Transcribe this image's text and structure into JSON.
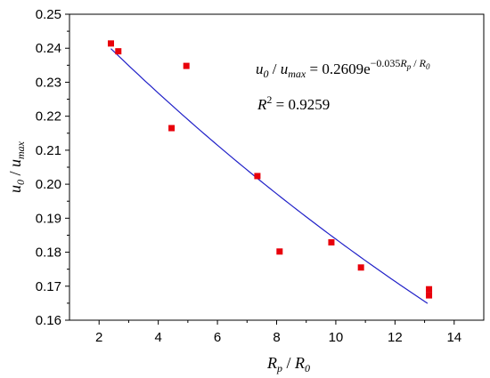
{
  "chart_data": {
    "type": "scatter",
    "xlim": [
      1,
      15
    ],
    "ylim": [
      0.16,
      0.25
    ],
    "x_ticks": [
      2,
      4,
      6,
      8,
      10,
      12,
      14
    ],
    "y_ticks": [
      0.16,
      0.17,
      0.18,
      0.19,
      0.2,
      0.21,
      0.22,
      0.23,
      0.24,
      0.25
    ],
    "x_tick_labels": [
      "2",
      "4",
      "6",
      "8",
      "10",
      "12",
      "14"
    ],
    "y_tick_labels": [
      "0.16",
      "0.17",
      "0.18",
      "0.19",
      "0.20",
      "0.21",
      "0.22",
      "0.23",
      "0.24",
      "0.25"
    ],
    "xlabel": {
      "main": "R",
      "sub_p": "p",
      "sep": " / ",
      "main2": "R",
      "sub_0": "0"
    },
    "ylabel": {
      "main": "u",
      "sub_0": "0",
      "sep": " / ",
      "main2": "u",
      "sub_max": "max"
    },
    "points": [
      {
        "x": 2.4,
        "y": 0.2414
      },
      {
        "x": 2.65,
        "y": 0.2391
      },
      {
        "x": 4.45,
        "y": 0.2165
      },
      {
        "x": 4.95,
        "y": 0.2348
      },
      {
        "x": 7.35,
        "y": 0.2024
      },
      {
        "x": 8.1,
        "y": 0.1802
      },
      {
        "x": 9.85,
        "y": 0.1829
      },
      {
        "x": 10.85,
        "y": 0.1755
      },
      {
        "x": 13.15,
        "y": 0.1691
      },
      {
        "x": 13.15,
        "y": 0.1673
      }
    ],
    "fit": {
      "a": 0.2609,
      "b": -0.035,
      "x_range": [
        2.4,
        13.1
      ]
    },
    "colors": {
      "points": "#e8000b",
      "fit": "#2020c8",
      "axes": "#000000"
    },
    "annotation": {
      "eq_lhs_u": "u",
      "eq_lhs_sub0": "0",
      "eq_sep": " / ",
      "eq_lhs_u2": "u",
      "eq_lhs_submax": "max",
      "eq_rhs": " = 0.2609e",
      "eq_exp": "−0.035",
      "eq_exp_R": "R",
      "eq_exp_subp": "p",
      "eq_exp_sep": " / ",
      "eq_exp_R2": "R",
      "eq_exp_sub0": "0",
      "r2_label": "R",
      "r2_sup": "2",
      "r2_value": " = 0.9259"
    }
  }
}
